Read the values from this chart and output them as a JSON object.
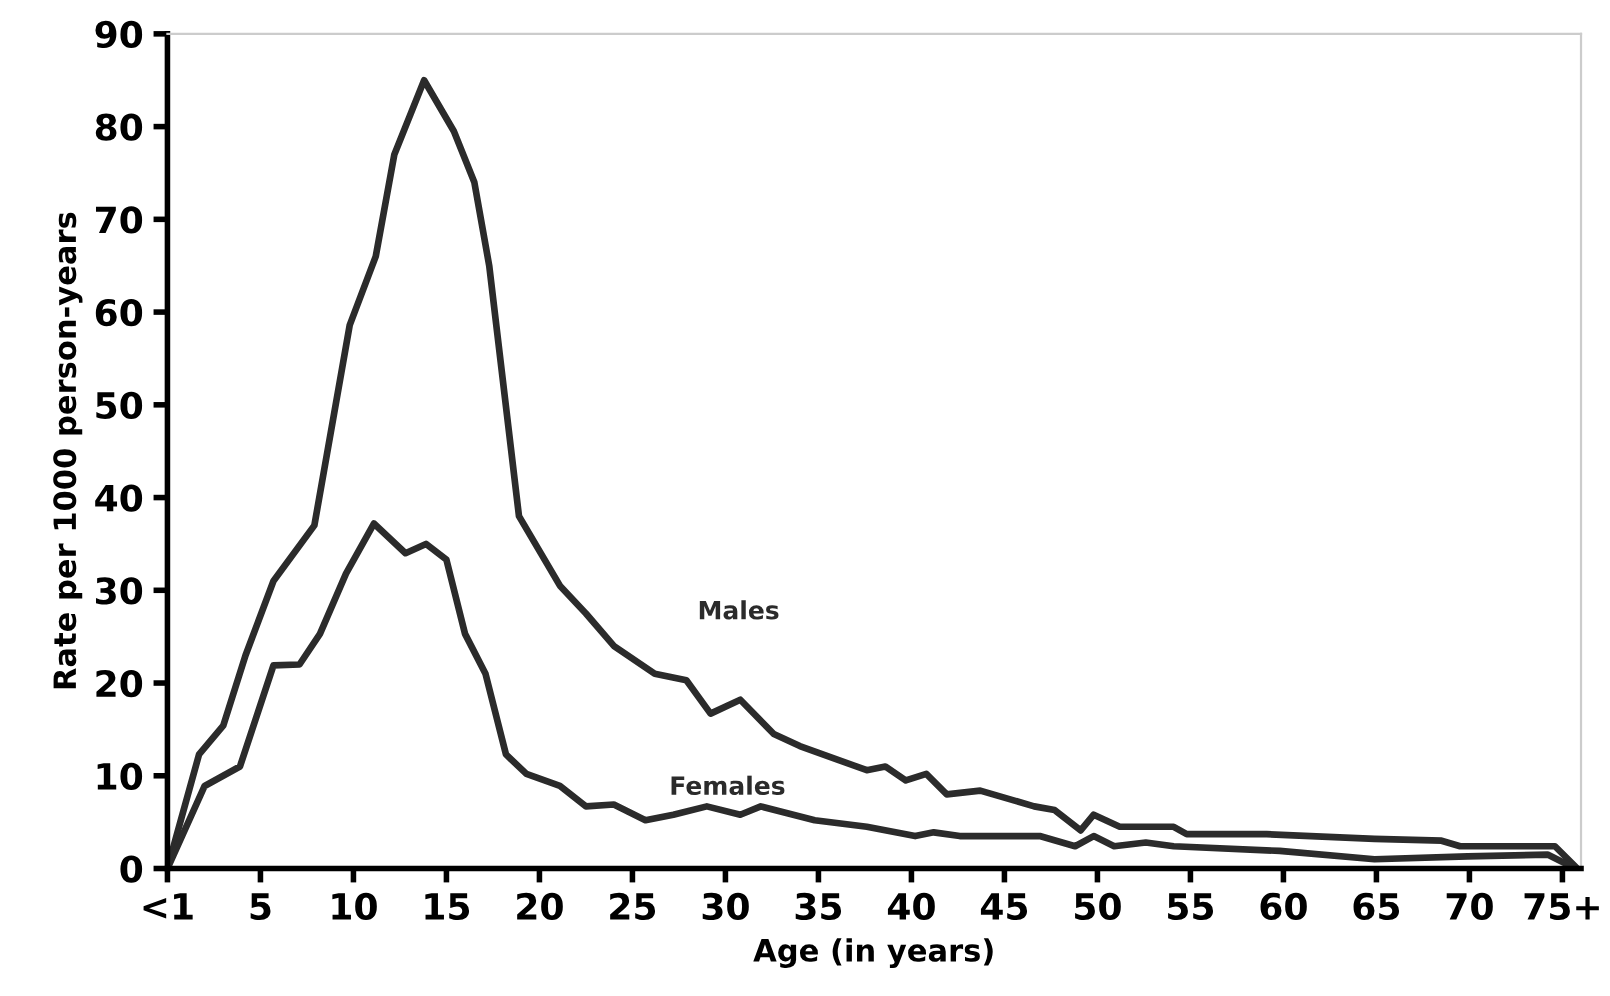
{
  "chart_data": {
    "type": "line",
    "xlabel": "Age (in years)",
    "ylabel": "Rate per 1000 person-years",
    "xlim": [
      0,
      76
    ],
    "ylim": [
      0,
      90
    ],
    "xticks": [
      {
        "value": 0,
        "label": "<1"
      },
      5,
      10,
      15,
      20,
      25,
      30,
      35,
      40,
      45,
      50,
      55,
      60,
      65,
      70,
      {
        "value": 75,
        "label": "75+"
      }
    ],
    "yticks": [
      0,
      10,
      20,
      30,
      40,
      50,
      60,
      70,
      80,
      90
    ],
    "grid": false,
    "legend": false,
    "marker": "none",
    "line_style": "solid",
    "series": [
      {
        "name": "Males",
        "color": "#2b2b2b",
        "x": [
          0,
          1.7,
          3.0,
          4.2,
          5.7,
          7.9,
          9.8,
          11.2,
          12.2,
          13.8,
          15.4,
          16.5,
          17.3,
          18.9,
          21.1,
          22.5,
          24,
          26.2,
          27.9,
          29.2,
          30.8,
          32.6,
          34,
          37.6,
          38.6,
          39.7,
          40.8,
          41.9,
          43.7,
          46.6,
          47.7,
          49.1,
          49.8,
          51.2,
          54.1,
          54.8,
          59.1,
          64.9,
          68.5,
          69.5,
          74.6,
          75.8
        ],
        "values": [
          0,
          12.3,
          15.4,
          23,
          31,
          37,
          58.6,
          66,
          77,
          85,
          79.5,
          74,
          65,
          38,
          30.5,
          27.5,
          24,
          21,
          20.3,
          16.7,
          18.2,
          14.5,
          13.2,
          10.6,
          11,
          9.5,
          10.2,
          8,
          8.4,
          6.7,
          6.3,
          4.1,
          5.8,
          4.5,
          4.5,
          3.7,
          3.7,
          3.2,
          3,
          2.4,
          2.4,
          0
        ]
      },
      {
        "name": "Females",
        "color": "#2b2b2b",
        "x": [
          0,
          2.0,
          3.9,
          5.7,
          7.1,
          8.2,
          9.6,
          11.1,
          12.8,
          13.9,
          15.0,
          16.0,
          17.1,
          18.2,
          19.3,
          21.1,
          22.5,
          24,
          25.7,
          27.2,
          29,
          30.8,
          31.9,
          34.8,
          37.6,
          40.2,
          41.2,
          42.6,
          46.9,
          48.8,
          49.8,
          50.9,
          52.6,
          54.1,
          59.8,
          64.9,
          69.9,
          74.2,
          75.7
        ],
        "values": [
          0,
          8.9,
          11,
          21.9,
          22,
          25.3,
          31.8,
          37.2,
          34,
          35,
          33.3,
          25.3,
          21,
          12.3,
          10.2,
          8.9,
          6.7,
          6.9,
          5.2,
          5.8,
          6.7,
          5.8,
          6.7,
          5.2,
          4.5,
          3.5,
          3.9,
          3.5,
          3.5,
          2.4,
          3.5,
          2.4,
          2.8,
          2.4,
          1.9,
          1.0,
          1.3,
          1.5,
          0
        ]
      }
    ]
  }
}
